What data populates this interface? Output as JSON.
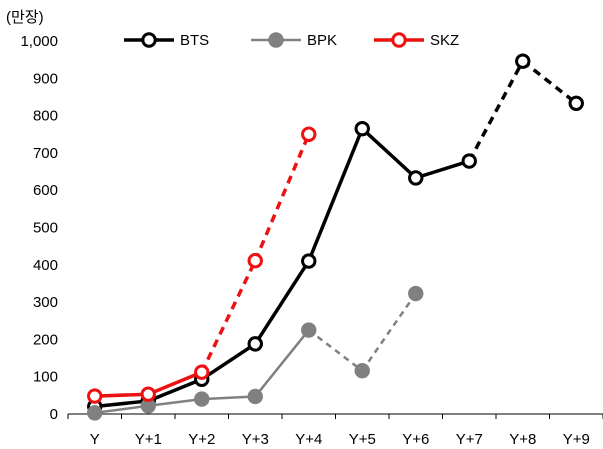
{
  "chart_data": {
    "type": "line",
    "unit_label": "(만장)",
    "categories": [
      "Y",
      "Y+1",
      "Y+2",
      "Y+3",
      "Y+4",
      "Y+5",
      "Y+6",
      "Y+7",
      "Y+8",
      "Y+9"
    ],
    "ylim": [
      0,
      1000
    ],
    "yticks": [
      "0",
      "100",
      "200",
      "300",
      "400",
      "500",
      "600",
      "700",
      "800",
      "900",
      "1,000"
    ],
    "ytick_values": [
      0,
      100,
      200,
      300,
      400,
      500,
      600,
      700,
      800,
      900,
      1000
    ],
    "legend_position": "top",
    "series": [
      {
        "name": "BTS",
        "color": "#000000",
        "marker_fill": "#ffffff",
        "dashed_from_index": 8,
        "values": [
          {
            "x": 0,
            "y": 20
          },
          {
            "x": 1,
            "y": 35
          },
          {
            "x": 2,
            "y": 93
          },
          {
            "x": 3,
            "y": 188
          },
          {
            "x": 4,
            "y": 410
          },
          {
            "x": 5,
            "y": 765
          },
          {
            "x": 6,
            "y": 633
          },
          {
            "x": 7,
            "y": 678
          },
          {
            "x": 8,
            "y": 946
          },
          {
            "x": 9,
            "y": 833
          }
        ]
      },
      {
        "name": "BPK",
        "color": "#808080",
        "marker_fill": "#808080",
        "dashed_from_index": 5,
        "values": [
          {
            "x": 0,
            "y": 3
          },
          {
            "x": 1,
            "y": 22
          },
          {
            "x": 2,
            "y": 40
          },
          {
            "x": 3,
            "y": 47
          },
          {
            "x": 4,
            "y": 225
          },
          {
            "x": 5,
            "y": 116
          },
          {
            "x": 6,
            "y": 323
          }
        ]
      },
      {
        "name": "SKZ",
        "color": "#ee1111",
        "marker_fill": "#ffffff",
        "dashed_from_index": 3,
        "values": [
          {
            "x": 0,
            "y": 48
          },
          {
            "x": 1,
            "y": 53
          },
          {
            "x": 2,
            "y": 112
          },
          {
            "x": 3,
            "y": 411
          },
          {
            "x": 4,
            "y": 750
          }
        ]
      }
    ]
  }
}
